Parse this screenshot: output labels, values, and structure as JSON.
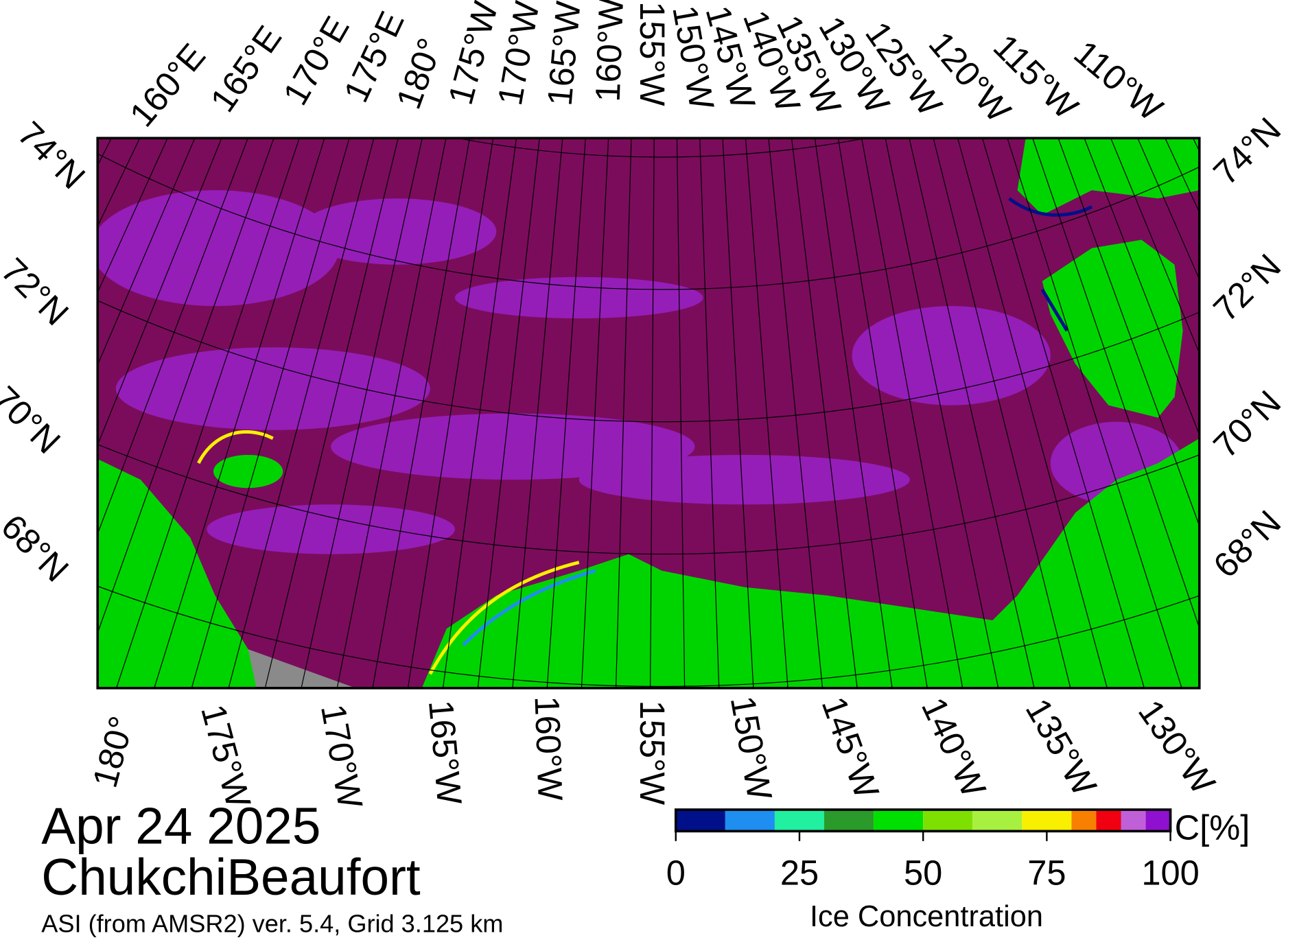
{
  "labels": {
    "top": [
      "160°E",
      "165°E",
      "170°E",
      "175°E",
      "180°",
      "175°W",
      "170°W",
      "165°W",
      "160°W",
      "155°W",
      "150°W",
      "145°W",
      "140°W",
      "135°W",
      "130°W",
      "125°W",
      "120°W",
      "115°W",
      "110°W"
    ],
    "bottom": [
      "180°",
      "175°W",
      "170°W",
      "165°W",
      "160°W",
      "155°W",
      "150°W",
      "145°W",
      "140°W",
      "135°W",
      "130°W"
    ],
    "left": [
      "74°N",
      "72°N",
      "70°N",
      "68°N"
    ],
    "right": [
      "74°N",
      "72°N",
      "70°N",
      "68°N"
    ]
  },
  "title": {
    "date": "Apr 24 2025",
    "region": "ChukchiBeaufort",
    "source": "ASI (from AMSR2) ver. 5.4,  Grid 3.125 km"
  },
  "colorbar": {
    "label": "Ice Concentration",
    "unit": "C[%]",
    "range": [
      0,
      100
    ],
    "bins": [
      0,
      10,
      20,
      30,
      40,
      50,
      60,
      70,
      80,
      85,
      90,
      95,
      100
    ],
    "colors": [
      "#00108a",
      "#1e8ef0",
      "#20f0a0",
      "#2a9a2a",
      "#00e000",
      "#7ee000",
      "#a8f040",
      "#f8f000",
      "#f88000",
      "#f00010",
      "#c060d8",
      "#9010d0"
    ],
    "ticks": [
      0,
      25,
      50,
      75,
      100
    ]
  }
}
